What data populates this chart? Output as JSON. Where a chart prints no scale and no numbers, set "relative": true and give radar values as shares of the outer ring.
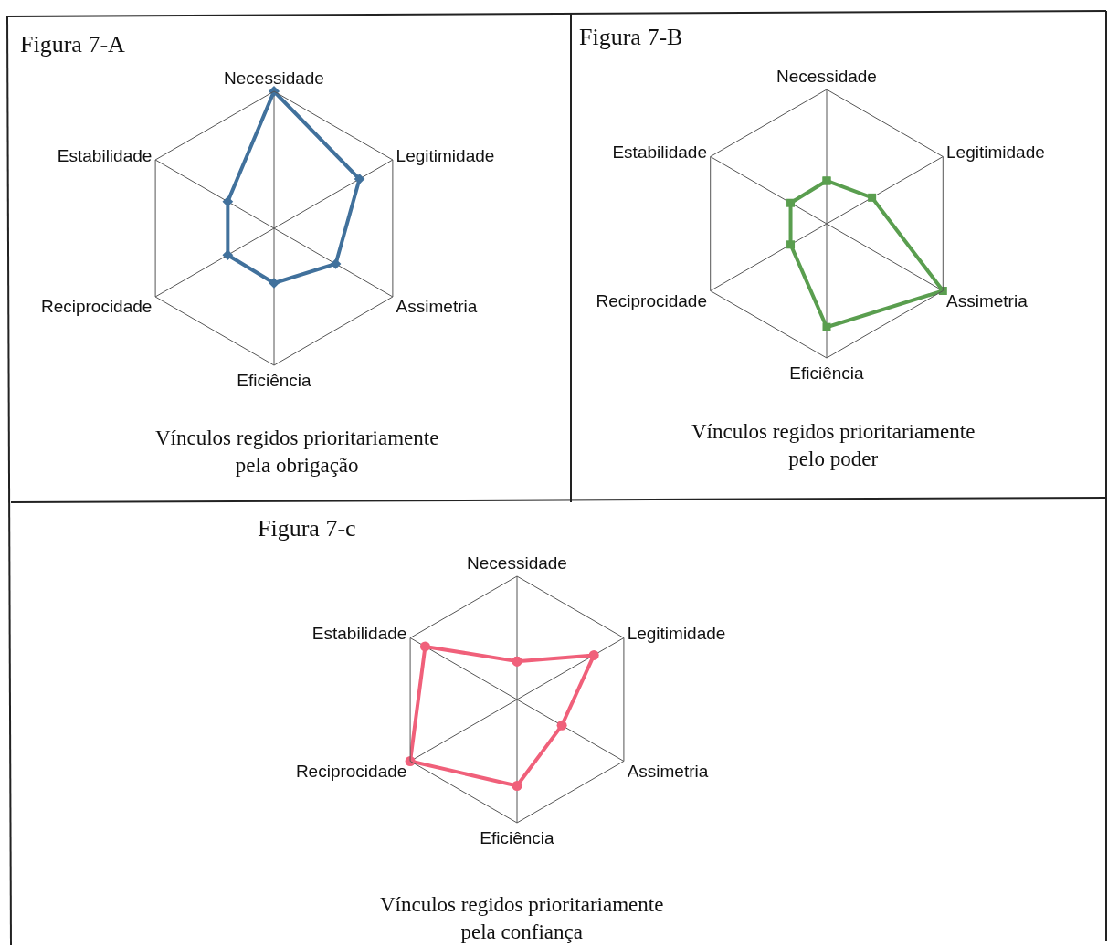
{
  "chart_data": [
    {
      "type": "radar",
      "title": "Figura 7-A",
      "annotations": [
        "Vínculos regidos prioritariamente\npela obrigação"
      ],
      "categories": [
        "Necessidade",
        "Legitimidade",
        "Assimetria",
        "Eficiência",
        "Reciprocidade",
        "Estabilidade"
      ],
      "relative": true,
      "grid": true,
      "marker": "diamond",
      "series": [
        {
          "color": "#41719c",
          "values": [
            1.0,
            0.72,
            0.52,
            0.4,
            0.39,
            0.39
          ]
        }
      ]
    },
    {
      "type": "radar",
      "title": "Figura 7-B",
      "annotations": [
        "Vínculos regidos prioritariamente\npelo poder"
      ],
      "categories": [
        "Necessidade",
        "Legitimidade",
        "Assimetria",
        "Eficiência",
        "Reciprocidade",
        "Estabilidade"
      ],
      "relative": true,
      "grid": true,
      "marker": "square",
      "series": [
        {
          "color": "#5a9e4f",
          "values": [
            0.32,
            0.39,
            1.0,
            0.77,
            0.31,
            0.31
          ]
        }
      ]
    },
    {
      "type": "radar",
      "title": "Figura 7-c",
      "annotations": [
        "Vínculos regidos prioritariamente\npela confiança"
      ],
      "categories": [
        "Necessidade",
        "Legitimidade",
        "Assimetria",
        "Eficiência",
        "Reciprocidade",
        "Estabilidade"
      ],
      "relative": true,
      "grid": true,
      "marker": "circle",
      "series": [
        {
          "color": "#f0607a",
          "values": [
            0.31,
            0.72,
            0.42,
            0.7,
            1.0,
            0.86
          ]
        }
      ]
    }
  ]
}
